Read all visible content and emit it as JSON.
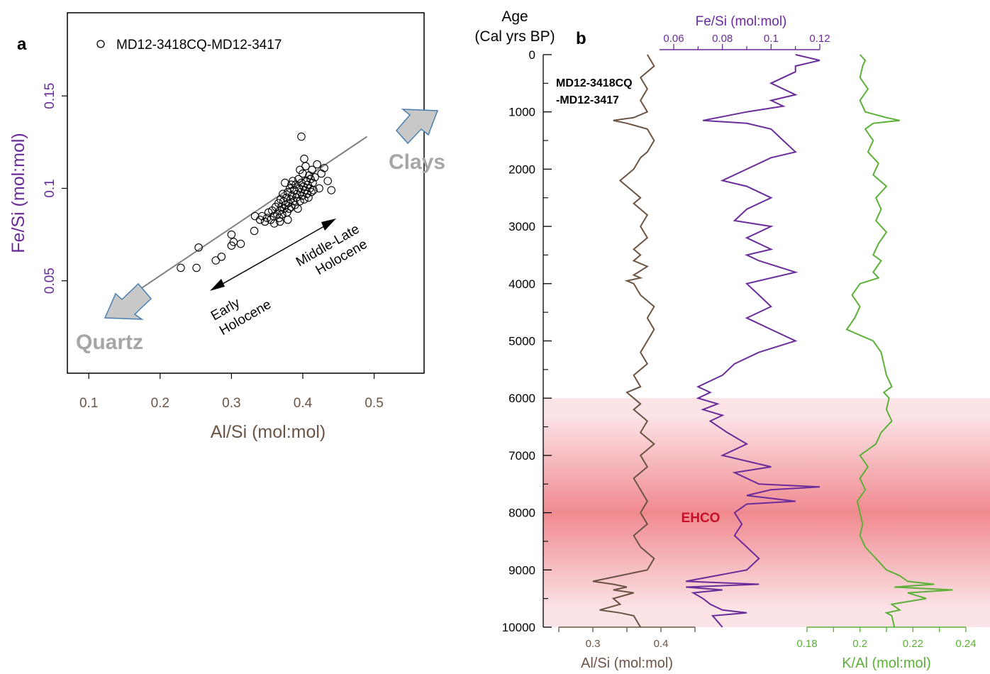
{
  "panel_a": {
    "label": "a",
    "legend": "MD12-3418CQ-MD12-3417",
    "xlabel": "Al/Si (mol:mol)",
    "ylabel": "Fe/Si (mol:mol)",
    "annotations": {
      "clays": "Clays",
      "quartz": "Quartz",
      "early_1": "Early",
      "early_2": "Holocene",
      "mid_1": "Middle-Late",
      "mid_2": "Holocene"
    }
  },
  "panel_b": {
    "label": "b",
    "age_label_1": "Age",
    "age_label_2": "(Cal yrs BP)",
    "core_label_1": "MD12-3418CQ",
    "core_label_2": "-MD12-3417",
    "alsi_label": "Al/Si (mol:mol)",
    "fesi_label": "Fe/Si (mol:mol)",
    "kal_label": "K/Al (mol:mol)",
    "ehco_label": "EHCO"
  },
  "colors": {
    "alsi": "#6b5444",
    "fesi": "#6a2c9a",
    "kal": "#5cb038",
    "ehco_text": "#c8102e",
    "band_light": "#fbe3e6",
    "band_strong": "#f08a8f",
    "arrow_fill": "#c8c8c8",
    "arrow_edge": "#4a7fb0",
    "annot_gray": "#a6a6a6"
  },
  "chart_data": [
    {
      "type": "scatter",
      "xlim": [
        0.07,
        0.57
      ],
      "ylim": [
        0.0,
        0.195
      ],
      "xticks": [
        "0.1",
        "0.2",
        "0.3",
        "0.4",
        "0.5"
      ],
      "yticks": [
        "0.05",
        "0.1",
        "0.15"
      ],
      "trend_line": [
        [
          0.17,
          0.045
        ],
        [
          0.49,
          0.128
        ]
      ],
      "series": [
        {
          "name": "MD12-3418CQ-MD12-3417",
          "points": [
            [
              0.229,
              0.057
            ],
            [
              0.251,
              0.057
            ],
            [
              0.254,
              0.068
            ],
            [
              0.278,
              0.061
            ],
            [
              0.286,
              0.063
            ],
            [
              0.3,
              0.075
            ],
            [
              0.3,
              0.069
            ],
            [
              0.303,
              0.071
            ],
            [
              0.313,
              0.07
            ],
            [
              0.332,
              0.077
            ],
            [
              0.333,
              0.085
            ],
            [
              0.34,
              0.083
            ],
            [
              0.343,
              0.085
            ],
            [
              0.347,
              0.082
            ],
            [
              0.35,
              0.084
            ],
            [
              0.352,
              0.087
            ],
            [
              0.355,
              0.083
            ],
            [
              0.357,
              0.088
            ],
            [
              0.359,
              0.085
            ],
            [
              0.36,
              0.081
            ],
            [
              0.362,
              0.09
            ],
            [
              0.364,
              0.086
            ],
            [
              0.366,
              0.092
            ],
            [
              0.367,
              0.084
            ],
            [
              0.368,
              0.088
            ],
            [
              0.369,
              0.094
            ],
            [
              0.37,
              0.09
            ],
            [
              0.371,
              0.086
            ],
            [
              0.372,
              0.097
            ],
            [
              0.373,
              0.093
            ],
            [
              0.374,
              0.089
            ],
            [
              0.375,
              0.103
            ],
            [
              0.376,
              0.091
            ],
            [
              0.377,
              0.095
            ],
            [
              0.378,
              0.087
            ],
            [
              0.379,
              0.098
            ],
            [
              0.38,
              0.092
            ],
            [
              0.381,
              0.089
            ],
            [
              0.382,
              0.1
            ],
            [
              0.383,
              0.094
            ],
            [
              0.384,
              0.09
            ],
            [
              0.385,
              0.096
            ],
            [
              0.386,
              0.104
            ],
            [
              0.387,
              0.093
            ],
            [
              0.388,
              0.099
            ],
            [
              0.389,
              0.091
            ],
            [
              0.39,
              0.102
            ],
            [
              0.391,
              0.095
            ],
            [
              0.392,
              0.097
            ],
            [
              0.393,
              0.089
            ],
            [
              0.394,
              0.105
            ],
            [
              0.395,
              0.1
            ],
            [
              0.396,
              0.093
            ],
            [
              0.397,
              0.098
            ],
            [
              0.398,
              0.103
            ],
            [
              0.399,
              0.096
            ],
            [
              0.4,
              0.108
            ],
            [
              0.401,
              0.101
            ],
            [
              0.402,
              0.094
            ],
            [
              0.403,
              0.099
            ],
            [
              0.404,
              0.112
            ],
            [
              0.405,
              0.104
            ],
            [
              0.406,
              0.097
            ],
            [
              0.407,
              0.102
            ],
            [
              0.408,
              0.095
            ],
            [
              0.409,
              0.107
            ],
            [
              0.41,
              0.1
            ],
            [
              0.411,
              0.105
            ],
            [
              0.412,
              0.098
            ],
            [
              0.413,
              0.11
            ],
            [
              0.414,
              0.103
            ],
            [
              0.415,
              0.099
            ],
            [
              0.417,
              0.106
            ],
            [
              0.42,
              0.113
            ],
            [
              0.423,
              0.1
            ],
            [
              0.426,
              0.108
            ],
            [
              0.43,
              0.111
            ],
            [
              0.435,
              0.104
            ],
            [
              0.44,
              0.099
            ],
            [
              0.398,
              0.128
            ],
            [
              0.402,
              0.116
            ],
            [
              0.384,
              0.102
            ],
            [
              0.396,
              0.11
            ],
            [
              0.379,
              0.083
            ],
            [
              0.368,
              0.082
            ]
          ]
        }
      ]
    },
    {
      "type": "line",
      "yaxis_label": "Age (Cal yrs BP)",
      "ylim": [
        0,
        10000
      ],
      "yticks": [
        "0",
        "1000",
        "2000",
        "3000",
        "4000",
        "5000",
        "6000",
        "7000",
        "8000",
        "9000",
        "10000"
      ],
      "ehco_band": {
        "start_age": 6000,
        "peak_age": 8000,
        "end_age": 10000
      },
      "series": [
        {
          "name": "Al/Si (mol:mol)",
          "xlim": [
            0.25,
            0.4
          ],
          "xticks": [
            "0.3",
            "0.4"
          ],
          "age": [
            0,
            200,
            400,
            600,
            800,
            1000,
            1100,
            1150,
            1200,
            1300,
            1500,
            1700,
            1800,
            2000,
            2200,
            2300,
            2500,
            2600,
            2800,
            3000,
            3200,
            3400,
            3500,
            3600,
            3700,
            3850,
            3900,
            3950,
            4000,
            4200,
            4400,
            4600,
            4800,
            5000,
            5200,
            5400,
            5600,
            5800,
            5900,
            6000,
            6100,
            6200,
            6400,
            6600,
            6800,
            7000,
            7200,
            7400,
            7600,
            7800,
            8000,
            8200,
            8400,
            8600,
            8800,
            9000,
            9100,
            9200,
            9250,
            9300,
            9350,
            9400,
            9500,
            9600,
            9700,
            9750,
            9800,
            10000
          ],
          "values": [
            0.38,
            0.39,
            0.37,
            0.38,
            0.37,
            0.38,
            0.36,
            0.33,
            0.35,
            0.38,
            0.39,
            0.38,
            0.37,
            0.36,
            0.34,
            0.35,
            0.37,
            0.36,
            0.38,
            0.37,
            0.38,
            0.36,
            0.37,
            0.36,
            0.38,
            0.36,
            0.37,
            0.35,
            0.36,
            0.37,
            0.39,
            0.38,
            0.39,
            0.38,
            0.37,
            0.38,
            0.36,
            0.37,
            0.35,
            0.36,
            0.37,
            0.36,
            0.38,
            0.37,
            0.39,
            0.37,
            0.38,
            0.36,
            0.37,
            0.38,
            0.37,
            0.38,
            0.36,
            0.37,
            0.39,
            0.38,
            0.34,
            0.3,
            0.33,
            0.35,
            0.33,
            0.36,
            0.33,
            0.34,
            0.31,
            0.34,
            0.36,
            0.37
          ]
        },
        {
          "name": "Fe/Si (mol:mol)",
          "xlim": [
            0.06,
            0.12
          ],
          "xticks": [
            "0.06",
            "0.08",
            "0.1",
            "0.12"
          ],
          "age": [
            0,
            100,
            200,
            300,
            500,
            700,
            800,
            900,
            1000,
            1100,
            1150,
            1200,
            1300,
            1500,
            1700,
            1800,
            2000,
            2200,
            2300,
            2500,
            2700,
            2900,
            3000,
            3200,
            3400,
            3500,
            3600,
            3800,
            4000,
            4200,
            4400,
            4600,
            4800,
            5000,
            5200,
            5400,
            5600,
            5800,
            5900,
            6000,
            6100,
            6200,
            6300,
            6400,
            6600,
            6800,
            7000,
            7200,
            7300,
            7400,
            7500,
            7550,
            7600,
            7700,
            7800,
            7850,
            8000,
            8200,
            8400,
            8600,
            8800,
            9000,
            9200,
            9250,
            9300,
            9350,
            9400,
            9500,
            9600,
            9700,
            9750,
            9800,
            10000
          ],
          "values": [
            0.11,
            0.12,
            0.11,
            0.11,
            0.1,
            0.11,
            0.1,
            0.105,
            0.09,
            0.078,
            0.072,
            0.09,
            0.1,
            0.105,
            0.11,
            0.1,
            0.09,
            0.08,
            0.09,
            0.1,
            0.09,
            0.085,
            0.1,
            0.09,
            0.1,
            0.09,
            0.095,
            0.11,
            0.09,
            0.095,
            0.1,
            0.09,
            0.1,
            0.11,
            0.095,
            0.085,
            0.08,
            0.07,
            0.075,
            0.07,
            0.078,
            0.072,
            0.08,
            0.075,
            0.082,
            0.09,
            0.08,
            0.1,
            0.085,
            0.09,
            0.095,
            0.12,
            0.1,
            0.09,
            0.11,
            0.09,
            0.085,
            0.088,
            0.085,
            0.09,
            0.095,
            0.09,
            0.065,
            0.095,
            0.065,
            0.08,
            0.068,
            0.072,
            0.075,
            0.08,
            0.09,
            0.076,
            0.08
          ]
        },
        {
          "name": "K/Al (mol:mol)",
          "xlim": [
            0.18,
            0.24
          ],
          "xticks": [
            "0.18",
            "0.2",
            "0.22",
            "0.24"
          ],
          "age": [
            0,
            100,
            200,
            400,
            600,
            800,
            1000,
            1100,
            1150,
            1200,
            1300,
            1500,
            1700,
            1900,
            2100,
            2300,
            2500,
            2700,
            2900,
            3100,
            3300,
            3500,
            3600,
            3800,
            3900,
            4000,
            4200,
            4400,
            4600,
            4800,
            5000,
            5200,
            5400,
            5600,
            5800,
            5900,
            6000,
            6200,
            6400,
            6600,
            6800,
            7000,
            7200,
            7400,
            7600,
            7800,
            8000,
            8200,
            8400,
            8600,
            8800,
            9000,
            9100,
            9200,
            9250,
            9300,
            9350,
            9400,
            9500,
            9600,
            9700,
            9750,
            9800,
            10000
          ],
          "values": [
            0.2,
            0.202,
            0.201,
            0.2,
            0.203,
            0.2,
            0.202,
            0.21,
            0.215,
            0.205,
            0.202,
            0.205,
            0.203,
            0.207,
            0.205,
            0.21,
            0.206,
            0.208,
            0.206,
            0.21,
            0.207,
            0.205,
            0.208,
            0.205,
            0.207,
            0.2,
            0.197,
            0.2,
            0.198,
            0.195,
            0.205,
            0.208,
            0.209,
            0.21,
            0.212,
            0.209,
            0.211,
            0.21,
            0.212,
            0.208,
            0.206,
            0.2,
            0.203,
            0.2,
            0.202,
            0.199,
            0.2,
            0.201,
            0.2,
            0.202,
            0.206,
            0.21,
            0.215,
            0.218,
            0.228,
            0.213,
            0.235,
            0.218,
            0.225,
            0.212,
            0.215,
            0.21,
            0.212,
            0.213
          ]
        }
      ]
    }
  ]
}
